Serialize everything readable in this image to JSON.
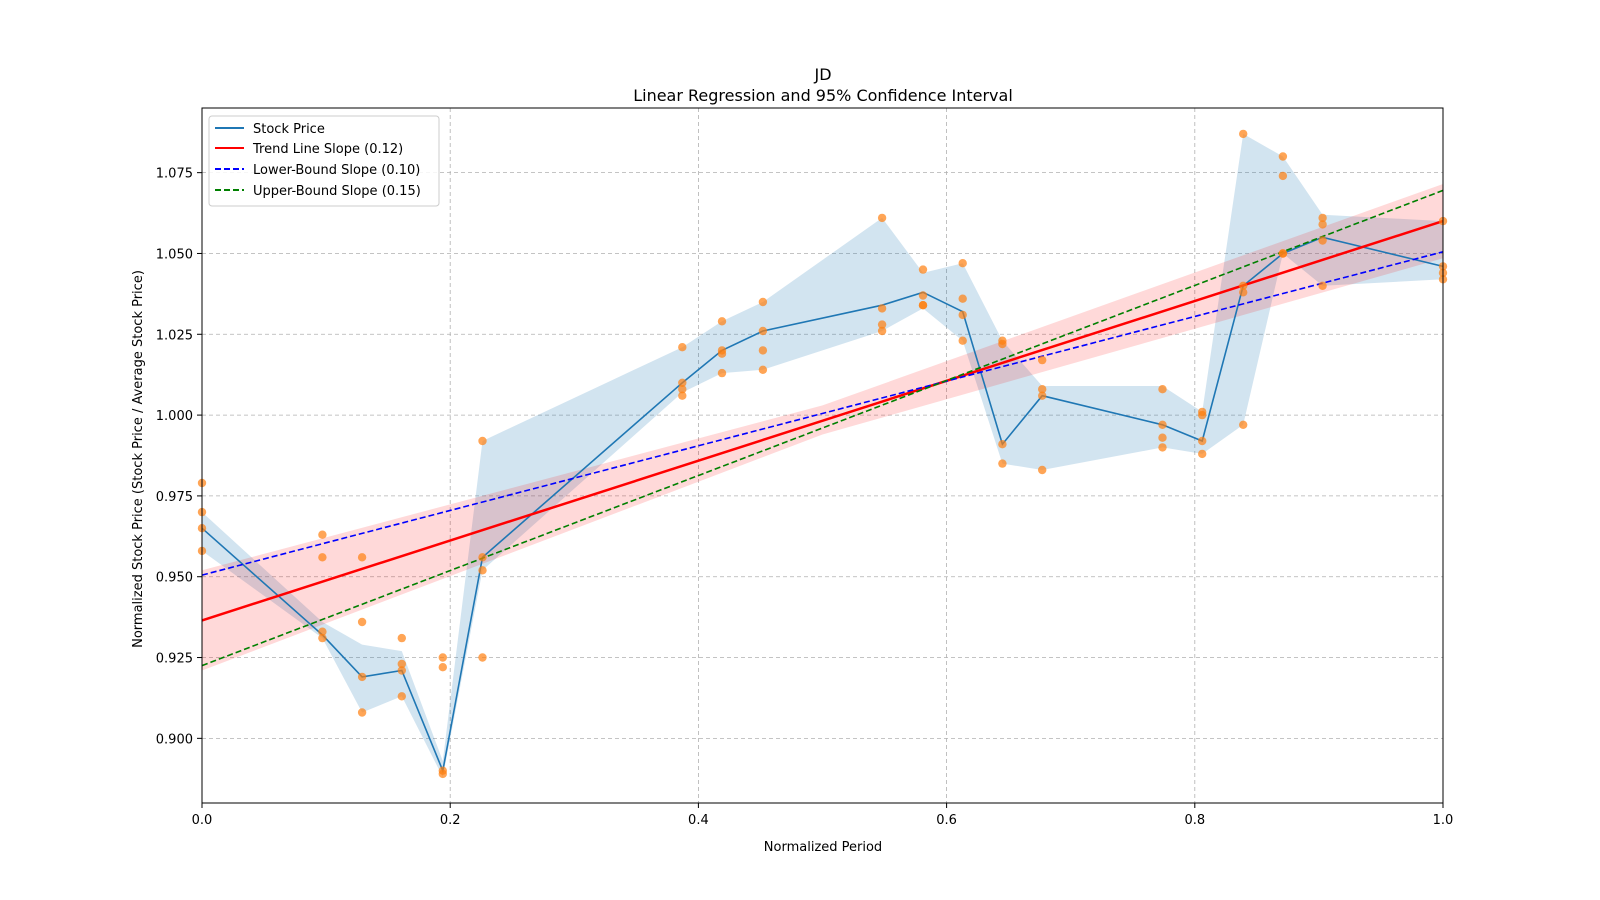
{
  "chart_data": {
    "type": "line",
    "title": "JD",
    "subtitle": "Linear Regression and 95% Confidence Interval",
    "xlabel": "Normalized Period",
    "ylabel": "Normalized Stock Price (Stock Price / Average Stock Price)",
    "xlim": [
      0.0,
      1.0
    ],
    "ylim": [
      0.88,
      1.095
    ],
    "x_ticks": [
      0.0,
      0.2,
      0.4,
      0.6,
      0.8,
      1.0
    ],
    "x_tick_labels": [
      "0.0",
      "0.2",
      "0.4",
      "0.6",
      "0.8",
      "1.0"
    ],
    "y_ticks": [
      0.9,
      0.925,
      0.95,
      0.975,
      1.0,
      1.025,
      1.05,
      1.075
    ],
    "y_tick_labels": [
      "0.900",
      "0.925",
      "0.950",
      "0.975",
      "1.000",
      "1.025",
      "1.050",
      "1.075"
    ],
    "grid": true,
    "legend_position": "top-left",
    "series": [
      {
        "name": "Stock Price",
        "kind": "line",
        "color": "#1f77b4",
        "x": [
          0.0,
          0.097,
          0.129,
          0.161,
          0.194,
          0.226,
          0.387,
          0.419,
          0.452,
          0.548,
          0.581,
          0.613,
          0.645,
          0.677,
          0.774,
          0.806,
          0.839,
          0.871,
          0.903,
          1.0
        ],
        "y": [
          0.965,
          0.932,
          0.919,
          0.921,
          0.89,
          0.956,
          1.01,
          1.02,
          1.026,
          1.034,
          1.038,
          1.032,
          0.991,
          1.006,
          0.997,
          0.992,
          1.04,
          1.05,
          1.055,
          1.046
        ]
      },
      {
        "name": "Trend Line Slope (0.12)",
        "kind": "line",
        "color": "#ff0000",
        "x": [
          0.0,
          1.0
        ],
        "y": [
          0.9365,
          1.06
        ]
      },
      {
        "name": "Lower-Bound Slope (0.10)",
        "kind": "dashed",
        "color": "#0000ff",
        "x": [
          0.0,
          1.0
        ],
        "y": [
          0.9505,
          1.0505
        ]
      },
      {
        "name": "Upper-Bound Slope (0.15)",
        "kind": "dashed",
        "color": "#008000",
        "x": [
          0.0,
          1.0
        ],
        "y": [
          0.9225,
          1.0695
        ]
      }
    ],
    "price_band": {
      "color": "#1f77b4",
      "x": [
        0.0,
        0.097,
        0.129,
        0.161,
        0.194,
        0.226,
        0.387,
        0.419,
        0.452,
        0.548,
        0.581,
        0.613,
        0.645,
        0.677,
        0.774,
        0.806,
        0.839,
        0.871,
        0.903,
        1.0
      ],
      "upper": [
        0.97,
        0.936,
        0.929,
        0.927,
        0.893,
        0.992,
        1.021,
        1.029,
        1.035,
        1.061,
        1.044,
        1.047,
        1.023,
        1.009,
        1.009,
        1.001,
        1.087,
        1.08,
        1.062,
        1.06
      ],
      "lower": [
        0.958,
        0.931,
        0.908,
        0.913,
        0.888,
        0.952,
        1.007,
        1.013,
        1.014,
        1.026,
        1.033,
        1.023,
        0.985,
        0.983,
        0.99,
        0.988,
        0.997,
        1.05,
        1.04,
        1.042
      ]
    },
    "regression_band": {
      "color": "#ff0000",
      "x": [
        0.0,
        0.5,
        1.0
      ],
      "upper": [
        0.952,
        1.003,
        1.0715
      ],
      "lower": [
        0.921,
        0.994,
        1.0485
      ]
    },
    "scatter": {
      "color": "#ff7f0e",
      "x": [
        0.0,
        0.0,
        0.0,
        0.0,
        0.097,
        0.097,
        0.097,
        0.097,
        0.129,
        0.129,
        0.129,
        0.129,
        0.161,
        0.161,
        0.161,
        0.161,
        0.194,
        0.194,
        0.194,
        0.194,
        0.226,
        0.226,
        0.226,
        0.226,
        0.387,
        0.387,
        0.387,
        0.387,
        0.419,
        0.419,
        0.419,
        0.419,
        0.452,
        0.452,
        0.452,
        0.452,
        0.548,
        0.548,
        0.548,
        0.548,
        0.581,
        0.581,
        0.581,
        0.581,
        0.613,
        0.613,
        0.613,
        0.613,
        0.645,
        0.645,
        0.645,
        0.645,
        0.677,
        0.677,
        0.677,
        0.677,
        0.774,
        0.774,
        0.774,
        0.774,
        0.806,
        0.806,
        0.806,
        0.806,
        0.839,
        0.839,
        0.839,
        0.839,
        0.871,
        0.871,
        0.871,
        0.871,
        0.903,
        0.903,
        0.903,
        0.903,
        1.0,
        1.0,
        1.0,
        1.0
      ],
      "y": [
        0.979,
        0.97,
        0.965,
        0.958,
        0.963,
        0.956,
        0.933,
        0.931,
        0.956,
        0.936,
        0.919,
        0.908,
        0.931,
        0.923,
        0.921,
        0.913,
        0.925,
        0.922,
        0.89,
        0.889,
        0.992,
        0.956,
        0.952,
        0.925,
        1.021,
        1.01,
        1.008,
        1.006,
        1.029,
        1.02,
        1.019,
        1.013,
        1.035,
        1.026,
        1.02,
        1.014,
        1.061,
        1.033,
        1.028,
        1.026,
        1.045,
        1.037,
        1.034,
        1.034,
        1.047,
        1.036,
        1.031,
        1.023,
        1.023,
        1.022,
        0.991,
        0.985,
        1.017,
        1.008,
        1.006,
        0.983,
        1.008,
        0.997,
        0.993,
        0.99,
        1.001,
        1.0,
        0.992,
        0.988,
        1.087,
        1.04,
        1.038,
        0.997,
        1.08,
        1.074,
        1.05,
        1.05,
        1.061,
        1.059,
        1.054,
        1.04,
        1.06,
        1.046,
        1.044,
        1.042
      ]
    }
  }
}
